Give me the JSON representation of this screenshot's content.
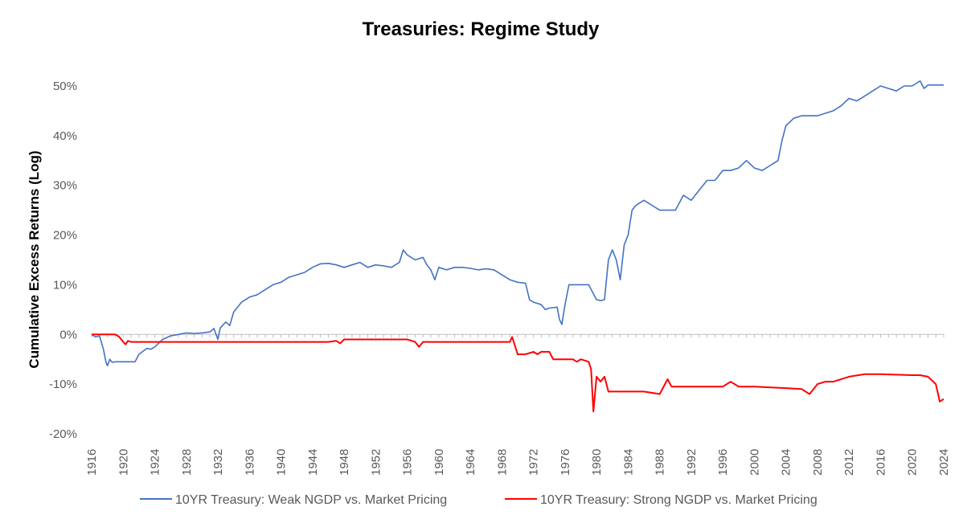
{
  "chart_data": {
    "type": "line",
    "title": "Treasuries: Regime Study",
    "ylabel": "Cumulative Excess Returns (Log)",
    "xlabel": "",
    "xlim": [
      1916,
      2024
    ],
    "ylim": [
      -20,
      50
    ],
    "y_ticks": [
      50,
      40,
      30,
      20,
      10,
      0,
      -10,
      -20
    ],
    "y_tick_labels": [
      "50%",
      "40%",
      "30%",
      "20%",
      "10%",
      "0%",
      "-10%",
      "-20%"
    ],
    "x_ticks": [
      1916,
      1920,
      1924,
      1928,
      1932,
      1936,
      1940,
      1944,
      1948,
      1952,
      1956,
      1960,
      1964,
      1968,
      1972,
      1976,
      1980,
      1984,
      1988,
      1992,
      1996,
      2000,
      2004,
      2008,
      2012,
      2016,
      2020,
      2024
    ],
    "x_tick_labels": [
      "1916",
      "1920",
      "1924",
      "1928",
      "1932",
      "1936",
      "1940",
      "1944",
      "1948",
      "1952",
      "1956",
      "1960",
      "1964",
      "1968",
      "1972",
      "1976",
      "1980",
      "1984",
      "1988",
      "1992",
      "1996",
      "2000",
      "2004",
      "2008",
      "2012",
      "2016",
      "2020",
      "2024"
    ],
    "legend_position": "bottom",
    "grid": false,
    "series": [
      {
        "name": "10YR Treasury: Weak NGDP vs. Market Pricing",
        "color": "#4472C4",
        "x": [
          1916,
          1916.5,
          1917,
          1917.5,
          1917.8,
          1918,
          1918.3,
          1918.6,
          1919,
          1920,
          1921,
          1921.5,
          1922,
          1923,
          1923.5,
          1924,
          1925,
          1926,
          1927,
          1928,
          1929,
          1930,
          1931,
          1931.5,
          1932,
          1932.3,
          1933,
          1933.5,
          1934,
          1935,
          1936,
          1937,
          1938,
          1939,
          1940,
          1941,
          1942,
          1943,
          1944,
          1945,
          1946,
          1947,
          1948,
          1949,
          1950,
          1951,
          1952,
          1953,
          1954,
          1955,
          1955.5,
          1956,
          1957,
          1958,
          1958.5,
          1959,
          1959.5,
          1960,
          1961,
          1962,
          1963,
          1964,
          1965,
          1966,
          1967,
          1968,
          1969,
          1970,
          1971,
          1971.5,
          1972,
          1973,
          1973.5,
          1974,
          1975,
          1975.3,
          1975.6,
          1976,
          1976.5,
          1977,
          1978,
          1979,
          1980,
          1980.5,
          1981,
          1981.5,
          1982,
          1982.5,
          1983,
          1983.5,
          1984,
          1984.5,
          1985,
          1986,
          1987,
          1988,
          1989,
          1990,
          1991,
          1992,
          1993,
          1994,
          1995,
          1996,
          1997,
          1998,
          1999,
          2000,
          2001,
          2002,
          2002.5,
          2003,
          2003.5,
          2004,
          2005,
          2006,
          2007,
          2008,
          2009,
          2010,
          2011,
          2012,
          2013,
          2014,
          2015,
          2016,
          2017,
          2018,
          2019,
          2020,
          2021,
          2021.5,
          2022,
          2023,
          2024
        ],
        "values": [
          0,
          -0.5,
          -0.3,
          -3.0,
          -5.5,
          -6.3,
          -5.0,
          -5.6,
          -5.5,
          -5.5,
          -5.5,
          -5.5,
          -4.0,
          -2.8,
          -3.0,
          -2.5,
          -1.0,
          -0.3,
          0,
          0.3,
          0.2,
          0.3,
          0.5,
          1.2,
          -1.0,
          1.3,
          2.5,
          1.8,
          4.5,
          6.5,
          7.5,
          8.0,
          9.0,
          10.0,
          10.5,
          11.5,
          12.0,
          12.5,
          13.5,
          14.2,
          14.3,
          14.0,
          13.5,
          14.0,
          14.5,
          13.5,
          14.0,
          13.8,
          13.5,
          14.5,
          17.0,
          16.0,
          15.0,
          15.5,
          14.0,
          13.0,
          11.0,
          13.5,
          13.0,
          13.5,
          13.5,
          13.3,
          13.0,
          13.2,
          13.0,
          12.0,
          11.0,
          10.5,
          10.3,
          7.0,
          6.5,
          6.0,
          5.0,
          5.3,
          5.5,
          3.0,
          2.0,
          6.0,
          10.0,
          10.0,
          10.0,
          10.0,
          7.0,
          6.8,
          7.0,
          15.0,
          17.0,
          15.0,
          11.0,
          18.0,
          20.0,
          25.0,
          26.0,
          27.0,
          26.0,
          25.0,
          25.0,
          25.0,
          28.0,
          27.0,
          29.0,
          31.0,
          31.0,
          33.0,
          33.0,
          33.5,
          35.0,
          33.5,
          33.0,
          34.0,
          34.5,
          35.0,
          39.0,
          42.0,
          43.5,
          44.0,
          44.0,
          44.0,
          44.5,
          45.0,
          46.0,
          47.5,
          47.0,
          48.0,
          49.0,
          50.0,
          49.5,
          49.0,
          50.0,
          50.0,
          51.0,
          49.5,
          50.2,
          50.2,
          50.2
        ]
      },
      {
        "name": "10YR Treasury: Strong NGDP vs. Market Pricing",
        "color": "#FF0000",
        "x": [
          1916,
          1917,
          1918,
          1919,
          1919.5,
          1920,
          1920.3,
          1920.6,
          1921,
          1922,
          1924,
          1928,
          1932,
          1936,
          1940,
          1944,
          1946,
          1947,
          1947.5,
          1948,
          1950,
          1952,
          1954,
          1956,
          1957,
          1957.5,
          1958,
          1960,
          1964,
          1968,
          1969,
          1969.3,
          1969.5,
          1970,
          1971,
          1972,
          1972.5,
          1973,
          1974,
          1974.5,
          1975,
          1976,
          1977,
          1977.5,
          1978,
          1979,
          1979.3,
          1979.6,
          1980,
          1980.5,
          1981,
          1981.5,
          1982,
          1984,
          1986,
          1988,
          1989,
          1989.5,
          1990,
          1992,
          1994,
          1996,
          1997,
          1998,
          2000,
          2004,
          2006,
          2007,
          2008,
          2009,
          2010,
          2012,
          2014,
          2016,
          2020,
          2021,
          2022,
          2023,
          2023.5,
          2024
        ],
        "values": [
          0,
          0,
          0,
          0,
          -0.5,
          -1.5,
          -2.0,
          -1.3,
          -1.5,
          -1.5,
          -1.5,
          -1.5,
          -1.5,
          -1.5,
          -1.5,
          -1.5,
          -1.5,
          -1.3,
          -1.8,
          -1.0,
          -1.0,
          -1.0,
          -1.0,
          -1.0,
          -1.5,
          -2.5,
          -1.5,
          -1.5,
          -1.5,
          -1.5,
          -1.5,
          -0.5,
          -1.5,
          -4.0,
          -4.0,
          -3.5,
          -4.0,
          -3.5,
          -3.5,
          -5.0,
          -5.0,
          -5.0,
          -5.0,
          -5.5,
          -5.0,
          -5.5,
          -7.0,
          -15.5,
          -8.5,
          -9.5,
          -8.5,
          -11.5,
          -11.5,
          -11.5,
          -11.5,
          -12.0,
          -9.0,
          -10.5,
          -10.5,
          -10.5,
          -10.5,
          -10.5,
          -9.5,
          -10.5,
          -10.5,
          -10.8,
          -11.0,
          -12.0,
          -10.0,
          -9.5,
          -9.5,
          -8.5,
          -8.0,
          -8.0,
          -8.2,
          -8.2,
          -8.5,
          -10.0,
          -13.5,
          -13.0
        ]
      }
    ]
  }
}
